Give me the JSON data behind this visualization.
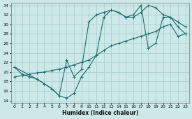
{
  "xlabel": "Humidex (Indice chaleur)",
  "bg_color": "#cce8e8",
  "grid_color": "#aad0d0",
  "line_color": "#1a6b6b",
  "xlim": [
    -0.5,
    23.5
  ],
  "ylim": [
    13.5,
    34.5
  ],
  "xticks": [
    0,
    1,
    2,
    3,
    4,
    5,
    6,
    7,
    8,
    9,
    10,
    11,
    12,
    13,
    14,
    15,
    16,
    17,
    18,
    19,
    20,
    21,
    22,
    23
  ],
  "yticks": [
    14,
    16,
    18,
    20,
    22,
    24,
    26,
    28,
    30,
    32,
    34
  ],
  "line1_x": [
    0,
    1,
    2,
    3,
    4,
    5,
    6,
    7,
    8,
    9,
    10,
    11,
    12,
    13,
    14,
    15,
    16,
    17,
    18,
    19,
    20,
    21,
    22,
    23
  ],
  "line1_y": [
    21,
    19.5,
    19,
    18.5,
    17.5,
    16.5,
    15.0,
    14.5,
    15.5,
    19.0,
    21.0,
    23.5,
    31.5,
    33.0,
    32.5,
    31.5,
    31.5,
    32.5,
    34.0,
    33.5,
    32.0,
    31.5,
    30.5,
    29.5
  ],
  "line2_x": [
    0,
    3,
    4,
    5,
    6,
    7,
    8,
    9,
    10,
    11,
    12,
    13,
    14,
    15,
    16,
    17,
    18,
    19,
    20,
    21,
    22,
    23
  ],
  "line2_y": [
    21,
    18.5,
    17.5,
    16.5,
    15.0,
    22.5,
    19.0,
    20.5,
    30.5,
    32.0,
    32.5,
    33.0,
    32.5,
    31.5,
    32.0,
    34.0,
    25.0,
    26.0,
    31.5,
    31.5,
    29.5,
    28.0
  ],
  "line3_x": [
    0,
    1,
    2,
    3,
    4,
    5,
    6,
    7,
    8,
    9,
    10,
    11,
    12,
    13,
    14,
    15,
    16,
    17,
    18,
    19,
    20,
    21,
    22,
    23
  ],
  "line3_y": [
    19.0,
    19.2,
    19.5,
    19.8,
    20.0,
    20.3,
    20.6,
    21.0,
    21.5,
    22.0,
    22.5,
    23.5,
    24.5,
    25.5,
    26.0,
    26.5,
    27.0,
    27.5,
    28.0,
    28.5,
    29.5,
    30.0,
    27.5,
    28.0
  ]
}
